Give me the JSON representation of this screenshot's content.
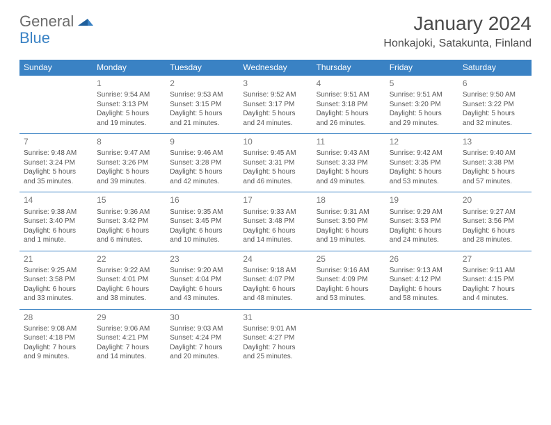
{
  "logo": {
    "text1": "General",
    "text2": "Blue"
  },
  "header": {
    "month_title": "January 2024",
    "location": "Honkajoki, Satakunta, Finland"
  },
  "colors": {
    "accent": "#3a82c4",
    "header_text": "#ffffff",
    "body_text": "#555555",
    "title_text": "#4a4a4a"
  },
  "dow": [
    "Sunday",
    "Monday",
    "Tuesday",
    "Wednesday",
    "Thursday",
    "Friday",
    "Saturday"
  ],
  "weeks": [
    [
      null,
      {
        "n": "1",
        "sr": "Sunrise: 9:54 AM",
        "ss": "Sunset: 3:13 PM",
        "d1": "Daylight: 5 hours",
        "d2": "and 19 minutes."
      },
      {
        "n": "2",
        "sr": "Sunrise: 9:53 AM",
        "ss": "Sunset: 3:15 PM",
        "d1": "Daylight: 5 hours",
        "d2": "and 21 minutes."
      },
      {
        "n": "3",
        "sr": "Sunrise: 9:52 AM",
        "ss": "Sunset: 3:17 PM",
        "d1": "Daylight: 5 hours",
        "d2": "and 24 minutes."
      },
      {
        "n": "4",
        "sr": "Sunrise: 9:51 AM",
        "ss": "Sunset: 3:18 PM",
        "d1": "Daylight: 5 hours",
        "d2": "and 26 minutes."
      },
      {
        "n": "5",
        "sr": "Sunrise: 9:51 AM",
        "ss": "Sunset: 3:20 PM",
        "d1": "Daylight: 5 hours",
        "d2": "and 29 minutes."
      },
      {
        "n": "6",
        "sr": "Sunrise: 9:50 AM",
        "ss": "Sunset: 3:22 PM",
        "d1": "Daylight: 5 hours",
        "d2": "and 32 minutes."
      }
    ],
    [
      {
        "n": "7",
        "sr": "Sunrise: 9:48 AM",
        "ss": "Sunset: 3:24 PM",
        "d1": "Daylight: 5 hours",
        "d2": "and 35 minutes."
      },
      {
        "n": "8",
        "sr": "Sunrise: 9:47 AM",
        "ss": "Sunset: 3:26 PM",
        "d1": "Daylight: 5 hours",
        "d2": "and 39 minutes."
      },
      {
        "n": "9",
        "sr": "Sunrise: 9:46 AM",
        "ss": "Sunset: 3:28 PM",
        "d1": "Daylight: 5 hours",
        "d2": "and 42 minutes."
      },
      {
        "n": "10",
        "sr": "Sunrise: 9:45 AM",
        "ss": "Sunset: 3:31 PM",
        "d1": "Daylight: 5 hours",
        "d2": "and 46 minutes."
      },
      {
        "n": "11",
        "sr": "Sunrise: 9:43 AM",
        "ss": "Sunset: 3:33 PM",
        "d1": "Daylight: 5 hours",
        "d2": "and 49 minutes."
      },
      {
        "n": "12",
        "sr": "Sunrise: 9:42 AM",
        "ss": "Sunset: 3:35 PM",
        "d1": "Daylight: 5 hours",
        "d2": "and 53 minutes."
      },
      {
        "n": "13",
        "sr": "Sunrise: 9:40 AM",
        "ss": "Sunset: 3:38 PM",
        "d1": "Daylight: 5 hours",
        "d2": "and 57 minutes."
      }
    ],
    [
      {
        "n": "14",
        "sr": "Sunrise: 9:38 AM",
        "ss": "Sunset: 3:40 PM",
        "d1": "Daylight: 6 hours",
        "d2": "and 1 minute."
      },
      {
        "n": "15",
        "sr": "Sunrise: 9:36 AM",
        "ss": "Sunset: 3:42 PM",
        "d1": "Daylight: 6 hours",
        "d2": "and 6 minutes."
      },
      {
        "n": "16",
        "sr": "Sunrise: 9:35 AM",
        "ss": "Sunset: 3:45 PM",
        "d1": "Daylight: 6 hours",
        "d2": "and 10 minutes."
      },
      {
        "n": "17",
        "sr": "Sunrise: 9:33 AM",
        "ss": "Sunset: 3:48 PM",
        "d1": "Daylight: 6 hours",
        "d2": "and 14 minutes."
      },
      {
        "n": "18",
        "sr": "Sunrise: 9:31 AM",
        "ss": "Sunset: 3:50 PM",
        "d1": "Daylight: 6 hours",
        "d2": "and 19 minutes."
      },
      {
        "n": "19",
        "sr": "Sunrise: 9:29 AM",
        "ss": "Sunset: 3:53 PM",
        "d1": "Daylight: 6 hours",
        "d2": "and 24 minutes."
      },
      {
        "n": "20",
        "sr": "Sunrise: 9:27 AM",
        "ss": "Sunset: 3:56 PM",
        "d1": "Daylight: 6 hours",
        "d2": "and 28 minutes."
      }
    ],
    [
      {
        "n": "21",
        "sr": "Sunrise: 9:25 AM",
        "ss": "Sunset: 3:58 PM",
        "d1": "Daylight: 6 hours",
        "d2": "and 33 minutes."
      },
      {
        "n": "22",
        "sr": "Sunrise: 9:22 AM",
        "ss": "Sunset: 4:01 PM",
        "d1": "Daylight: 6 hours",
        "d2": "and 38 minutes."
      },
      {
        "n": "23",
        "sr": "Sunrise: 9:20 AM",
        "ss": "Sunset: 4:04 PM",
        "d1": "Daylight: 6 hours",
        "d2": "and 43 minutes."
      },
      {
        "n": "24",
        "sr": "Sunrise: 9:18 AM",
        "ss": "Sunset: 4:07 PM",
        "d1": "Daylight: 6 hours",
        "d2": "and 48 minutes."
      },
      {
        "n": "25",
        "sr": "Sunrise: 9:16 AM",
        "ss": "Sunset: 4:09 PM",
        "d1": "Daylight: 6 hours",
        "d2": "and 53 minutes."
      },
      {
        "n": "26",
        "sr": "Sunrise: 9:13 AM",
        "ss": "Sunset: 4:12 PM",
        "d1": "Daylight: 6 hours",
        "d2": "and 58 minutes."
      },
      {
        "n": "27",
        "sr": "Sunrise: 9:11 AM",
        "ss": "Sunset: 4:15 PM",
        "d1": "Daylight: 7 hours",
        "d2": "and 4 minutes."
      }
    ],
    [
      {
        "n": "28",
        "sr": "Sunrise: 9:08 AM",
        "ss": "Sunset: 4:18 PM",
        "d1": "Daylight: 7 hours",
        "d2": "and 9 minutes."
      },
      {
        "n": "29",
        "sr": "Sunrise: 9:06 AM",
        "ss": "Sunset: 4:21 PM",
        "d1": "Daylight: 7 hours",
        "d2": "and 14 minutes."
      },
      {
        "n": "30",
        "sr": "Sunrise: 9:03 AM",
        "ss": "Sunset: 4:24 PM",
        "d1": "Daylight: 7 hours",
        "d2": "and 20 minutes."
      },
      {
        "n": "31",
        "sr": "Sunrise: 9:01 AM",
        "ss": "Sunset: 4:27 PM",
        "d1": "Daylight: 7 hours",
        "d2": "and 25 minutes."
      },
      null,
      null,
      null
    ]
  ]
}
